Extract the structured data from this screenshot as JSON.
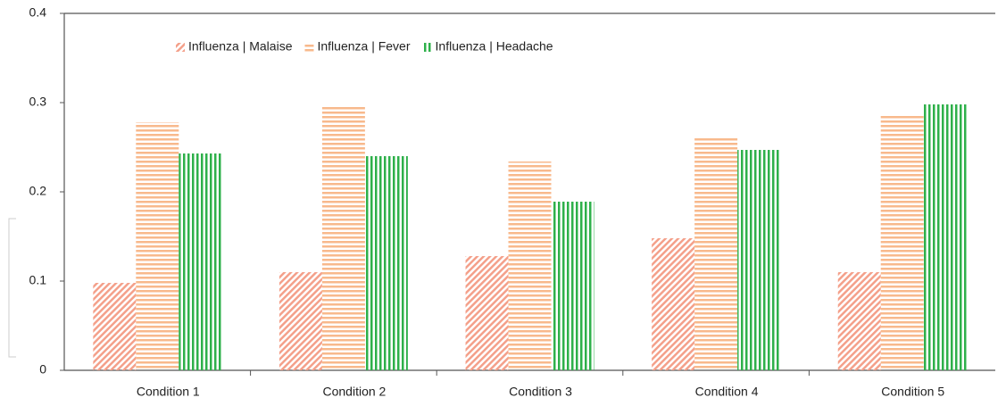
{
  "chart_data": {
    "type": "bar",
    "categories": [
      "Condition 1",
      "Condition 2",
      "Condition 3",
      "Condition 4",
      "Condition 5"
    ],
    "series": [
      {
        "name": "Influenza | Malaise",
        "color": "#f4a08a",
        "pattern": "diagonal",
        "values": [
          0.098,
          0.11,
          0.128,
          0.148,
          0.11
        ]
      },
      {
        "name": "Influenza | Fever",
        "color": "#f8b98c",
        "pattern": "horizontal",
        "values": [
          0.278,
          0.297,
          0.234,
          0.26,
          0.285
        ]
      },
      {
        "name": "Influenza | Headache",
        "color": "#2eb04a",
        "pattern": "vertical",
        "values": [
          0.243,
          0.24,
          0.189,
          0.247,
          0.298
        ]
      }
    ],
    "ylim": [
      0,
      0.4
    ],
    "yticks": [
      0,
      0.1,
      0.2,
      0.3,
      0.4
    ],
    "grid": false,
    "legend": "top-left"
  }
}
